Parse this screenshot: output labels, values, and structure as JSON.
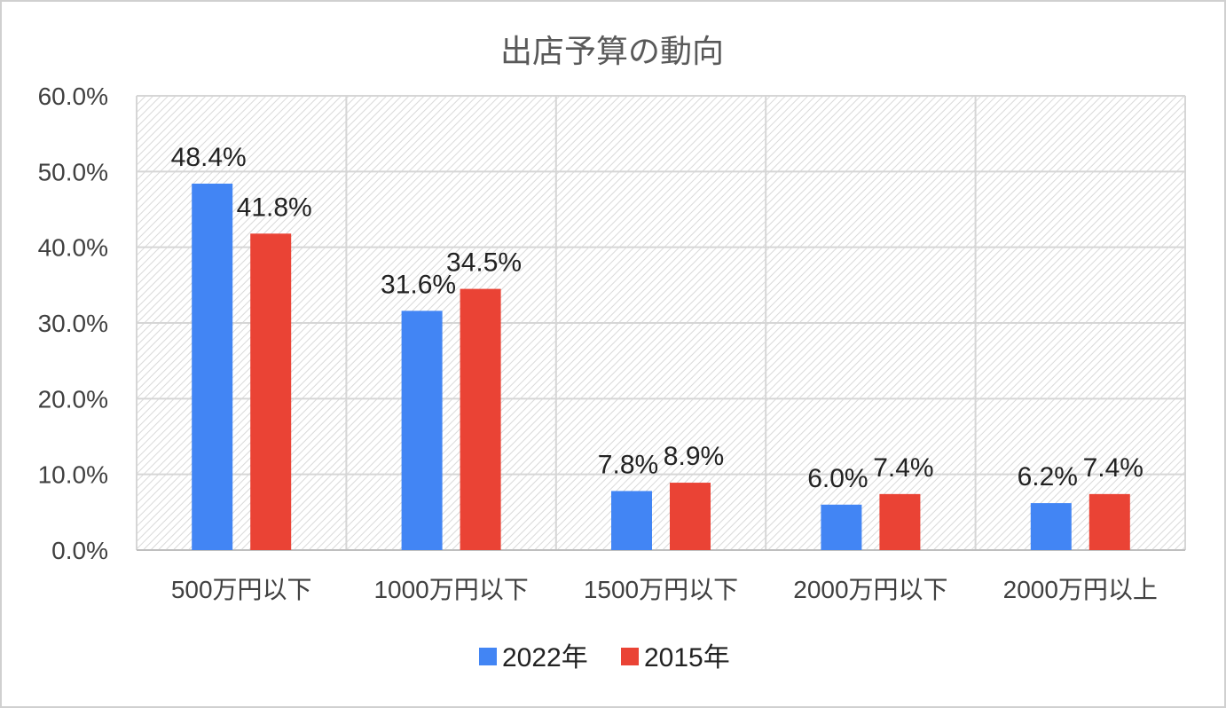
{
  "chart_data": {
    "type": "bar",
    "title": "出店予算の動向",
    "categories": [
      "500万円以下",
      "1000万円以下",
      "1500万円以下",
      "2000万円以下",
      "2000万円以上"
    ],
    "series": [
      {
        "name": "2022年",
        "values": [
          48.4,
          31.6,
          7.8,
          6.0,
          6.2
        ],
        "labels": [
          "48.4%",
          "31.6%",
          "7.8%",
          "6.0%",
          "6.2%"
        ],
        "color": "#4285F4"
      },
      {
        "name": "2015年",
        "values": [
          41.8,
          34.5,
          8.9,
          7.4,
          7.4
        ],
        "labels": [
          "41.8%",
          "34.5%",
          "8.9%",
          "7.4%",
          "7.4%"
        ],
        "color": "#EA4335"
      }
    ],
    "yticks": [
      0,
      10,
      20,
      30,
      40,
      50,
      60
    ],
    "ytick_labels": [
      "0.0%",
      "10.0%",
      "20.0%",
      "30.0%",
      "40.0%",
      "50.0%",
      "60.0%"
    ],
    "ylim": [
      0,
      60
    ],
    "grid": true,
    "legend": "bottom"
  }
}
